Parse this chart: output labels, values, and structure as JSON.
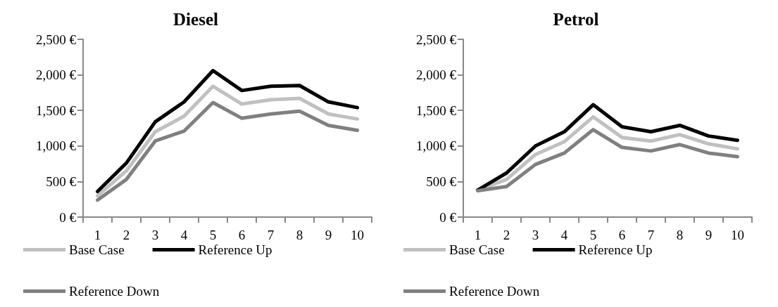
{
  "chart_data": [
    {
      "type": "line",
      "title": "Diesel",
      "categories": [
        "1",
        "2",
        "3",
        "4",
        "5",
        "6",
        "7",
        "8",
        "9",
        "10"
      ],
      "series": [
        {
          "name": "Base Case",
          "color": "#c0c0c0",
          "values": [
            300,
            650,
            1200,
            1420,
            1840,
            1590,
            1650,
            1670,
            1450,
            1380
          ]
        },
        {
          "name": "Reference Up",
          "color": "#000000",
          "values": [
            360,
            760,
            1340,
            1620,
            2060,
            1780,
            1840,
            1850,
            1620,
            1540
          ]
        },
        {
          "name": "Reference Down",
          "color": "#808080",
          "values": [
            240,
            530,
            1070,
            1210,
            1610,
            1390,
            1450,
            1490,
            1290,
            1220
          ]
        }
      ],
      "ylim": [
        0,
        2500
      ],
      "yticks": [
        {
          "value": 0,
          "label": "0 €"
        },
        {
          "value": 500,
          "label": "500 €"
        },
        {
          "value": 1000,
          "label": "1,000 €"
        },
        {
          "value": 1500,
          "label": "1,500 €"
        },
        {
          "value": 2000,
          "label": "2,000 €"
        },
        {
          "value": 2500,
          "label": "2,500 €"
        }
      ],
      "grid": false,
      "legend": "bottom",
      "marker": "none",
      "line_style": "solid"
    },
    {
      "type": "line",
      "title": "Petrol",
      "categories": [
        "1",
        "2",
        "3",
        "4",
        "5",
        "6",
        "7",
        "8",
        "9",
        "10"
      ],
      "series": [
        {
          "name": "Base Case",
          "color": "#c0c0c0",
          "values": [
            380,
            530,
            880,
            1060,
            1410,
            1120,
            1070,
            1160,
            1030,
            960
          ]
        },
        {
          "name": "Reference Up",
          "color": "#000000",
          "values": [
            380,
            620,
            1000,
            1200,
            1580,
            1270,
            1200,
            1290,
            1140,
            1080
          ]
        },
        {
          "name": "Reference Down",
          "color": "#808080",
          "values": [
            370,
            430,
            740,
            900,
            1230,
            980,
            930,
            1020,
            900,
            850
          ]
        }
      ],
      "ylim": [
        0,
        2500
      ],
      "yticks": [
        {
          "value": 0,
          "label": "0 €"
        },
        {
          "value": 500,
          "label": "500 €"
        },
        {
          "value": 1000,
          "label": "1,000 €"
        },
        {
          "value": 1500,
          "label": "1,500 €"
        },
        {
          "value": 2000,
          "label": "2,000 €"
        },
        {
          "value": 2500,
          "label": "2,500 €"
        }
      ],
      "grid": false,
      "legend": "bottom",
      "marker": "none",
      "line_style": "solid"
    }
  ]
}
